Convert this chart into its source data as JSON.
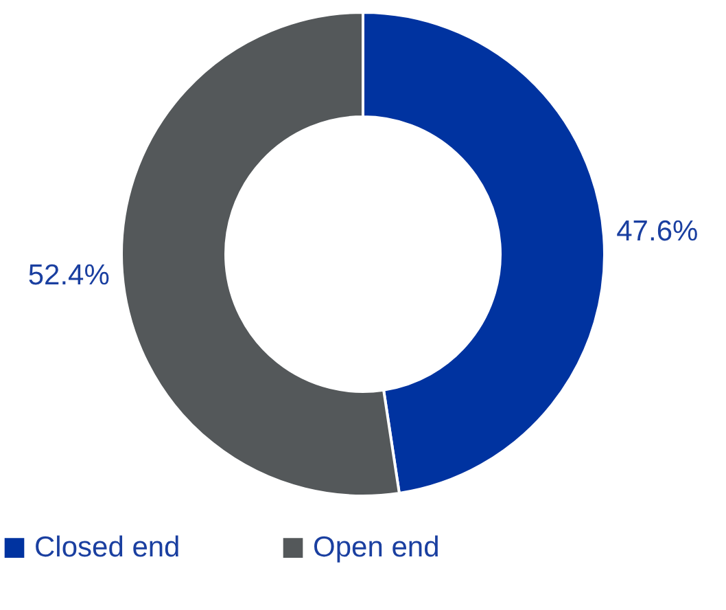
{
  "chart_data": {
    "type": "donut",
    "categories": [
      "Closed end",
      "Open end"
    ],
    "values": [
      47.6,
      52.4
    ],
    "colors": [
      "#0033a0",
      "#54585a"
    ],
    "value_labels": [
      "47.6%",
      "52.4%"
    ],
    "legend": "bottom"
  }
}
